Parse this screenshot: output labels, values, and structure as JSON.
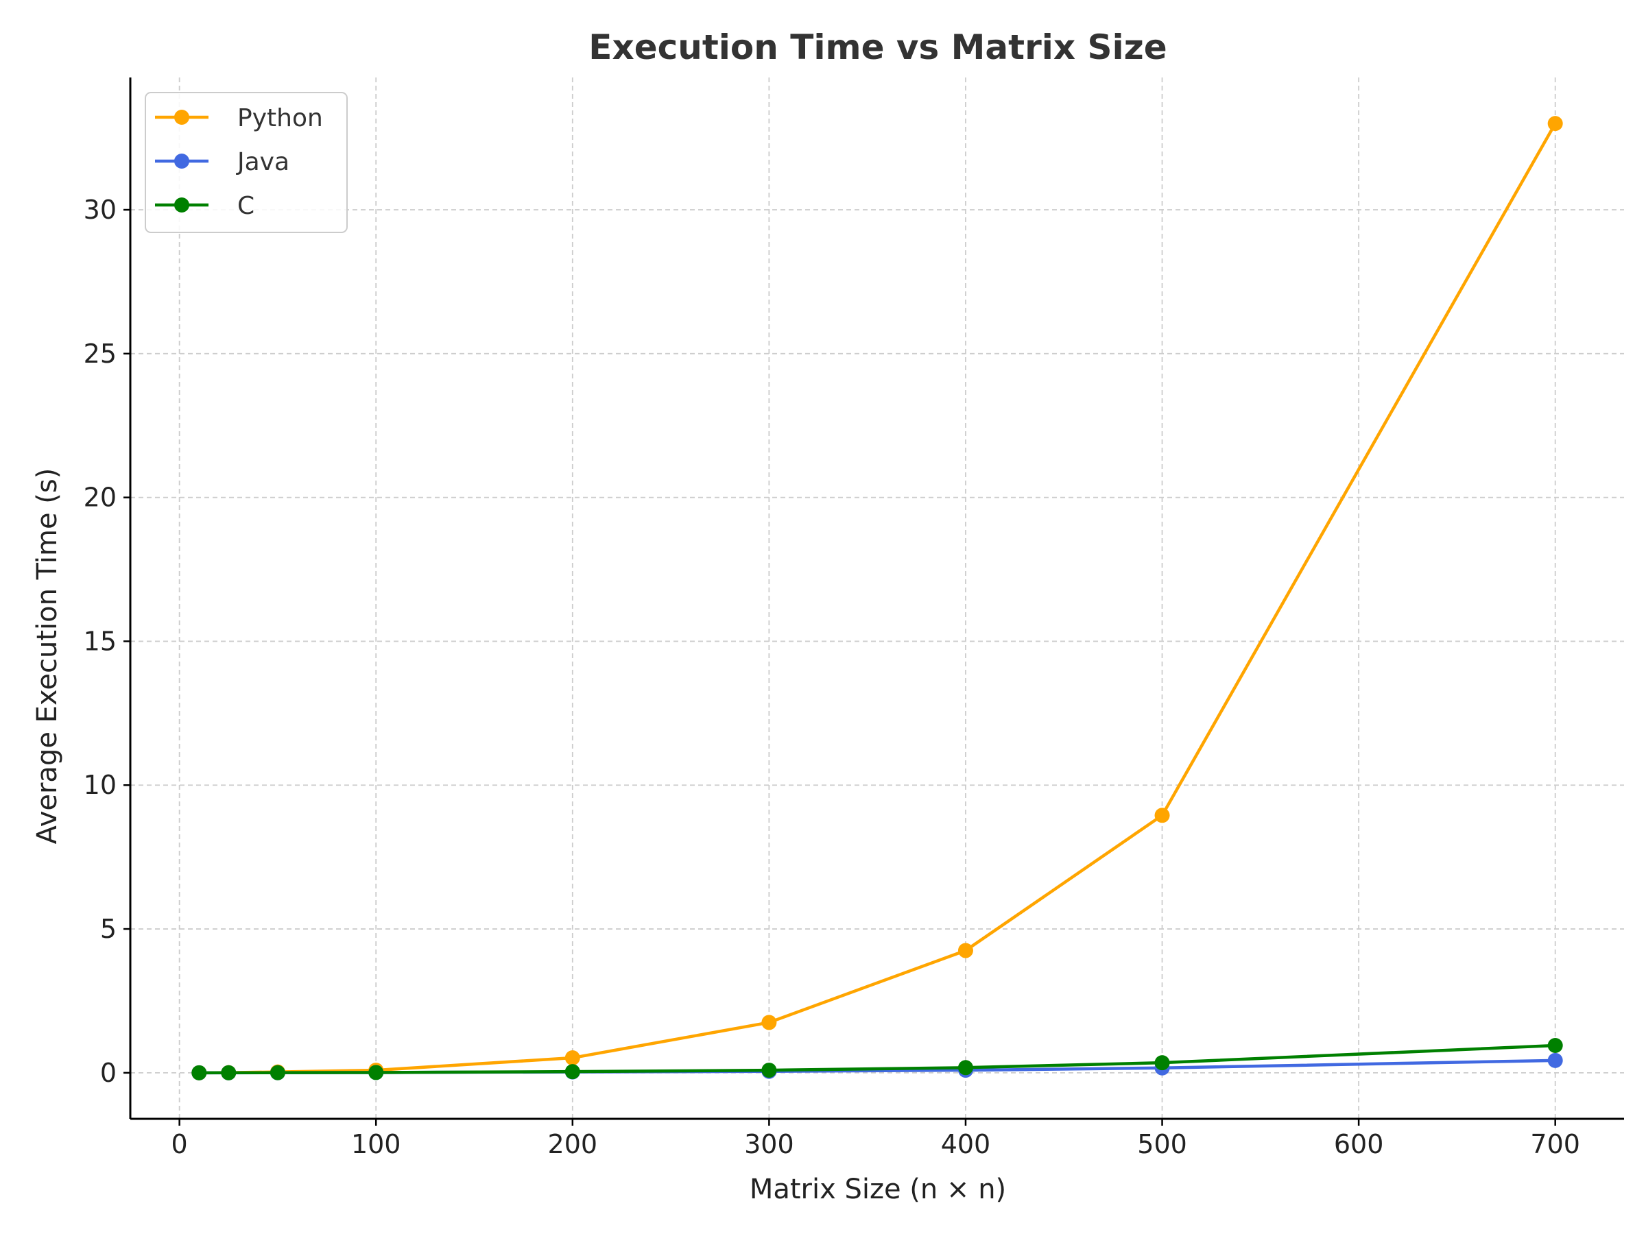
{
  "chart_data": {
    "type": "line",
    "title": "Execution Time vs Matrix Size",
    "xlabel": "Matrix Size (n × n)",
    "ylabel": "Average Execution Time (s)",
    "xlim": [
      -25,
      735
    ],
    "ylim": [
      -1.6,
      34.6
    ],
    "x_ticks": [
      0,
      100,
      200,
      300,
      400,
      500,
      600,
      700
    ],
    "y_ticks": [
      0,
      5,
      10,
      15,
      20,
      25,
      30
    ],
    "grid": true,
    "legend_position": "top-left",
    "x": [
      10,
      25,
      50,
      100,
      200,
      300,
      400,
      500,
      700
    ],
    "series": [
      {
        "name": "Python",
        "color": "#FFA500",
        "values": [
          0.001,
          0.005,
          0.03,
          0.09,
          0.52,
          1.75,
          4.25,
          8.95,
          33.0
        ]
      },
      {
        "name": "Java",
        "color": "#4169E1",
        "values": [
          0.0005,
          0.001,
          0.003,
          0.01,
          0.03,
          0.05,
          0.09,
          0.17,
          0.43
        ]
      },
      {
        "name": "C",
        "color": "#008000",
        "values": [
          0.001,
          0.002,
          0.005,
          0.01,
          0.04,
          0.09,
          0.18,
          0.35,
          0.95
        ]
      }
    ]
  }
}
